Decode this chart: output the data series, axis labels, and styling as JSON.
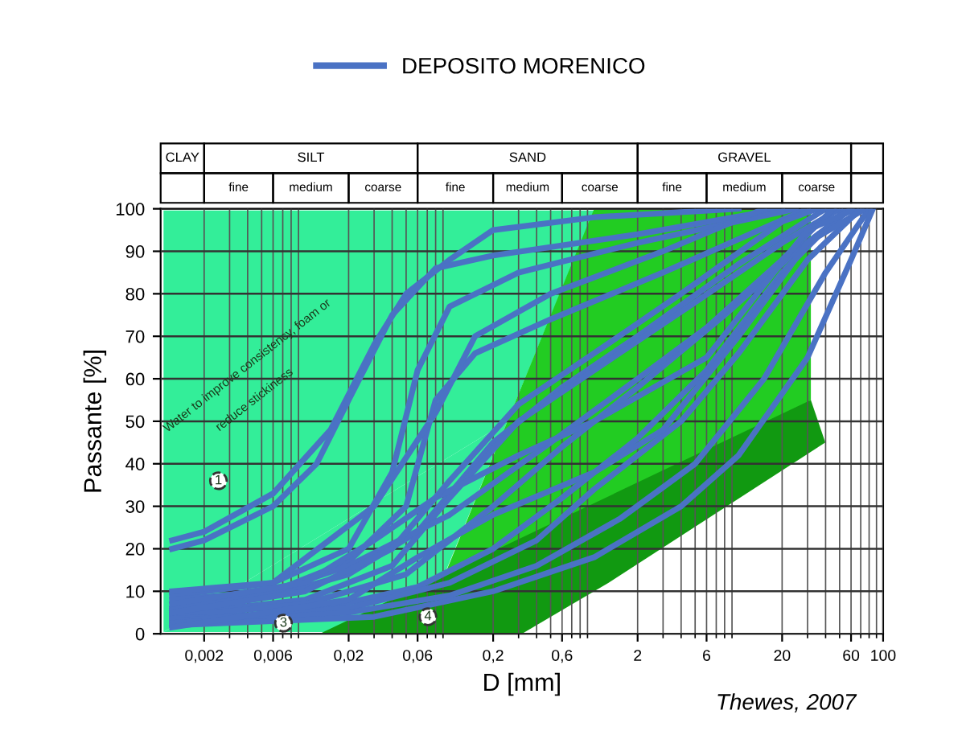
{
  "chart_data": {
    "type": "line",
    "xlabel": "D [mm]",
    "ylabel": "Passante [%]",
    "log": "x",
    "grid": true,
    "legend": "top",
    "line_style": "solid",
    "marker": "none",
    "xlim": [
      0.001,
      100
    ],
    "xticks": [
      {
        "value": 0.002,
        "label": "0,002"
      },
      {
        "value": 0.006,
        "label": "0,006"
      },
      {
        "value": 0.02,
        "label": "0,02"
      },
      {
        "value": 0.06,
        "label": "0,06"
      },
      {
        "value": 0.2,
        "label": "0,2"
      },
      {
        "value": 0.6,
        "label": "0,6"
      },
      2,
      6,
      20,
      60,
      100
    ],
    "ylim": [
      0,
      100
    ],
    "yticks": [
      0,
      10,
      20,
      30,
      40,
      50,
      60,
      70,
      80,
      90,
      100
    ],
    "annotations": [
      "CLAY",
      "SILT",
      "SAND",
      "GRAVEL",
      "fine",
      "medium",
      "coarse",
      "fine",
      "medium",
      "coarse",
      "fine",
      "medium",
      "coarse",
      "Water to improve consistency, foam or",
      "reduce stickiness",
      "1",
      "3",
      "4",
      "Thewes, 2007"
    ],
    "series": [
      {
        "name": "DEPOSITO MORENICO",
        "color": "#4a72c4",
        "x": [
          0.0012,
          0.002,
          0.006,
          0.015,
          0.03,
          0.05,
          0.1,
          0.2,
          1,
          10
        ],
        "values": [
          22,
          24,
          33,
          48,
          68,
          80,
          88,
          95,
          98,
          100
        ]
      },
      {
        "color": "#4a72c4",
        "x": [
          0.0012,
          0.002,
          0.006,
          0.012,
          0.02,
          0.04,
          0.08,
          0.2,
          2,
          20
        ],
        "values": [
          20,
          22,
          30,
          40,
          55,
          75,
          86,
          89,
          94,
          100
        ]
      },
      {
        "color": "#4a72c4",
        "x": [
          0.0012,
          0.006,
          0.02,
          0.04,
          0.06,
          0.1,
          0.3,
          2,
          25
        ],
        "values": [
          9,
          12,
          20,
          38,
          62,
          77,
          85,
          92,
          100
        ]
      },
      {
        "color": "#4a72c4",
        "x": [
          0.0012,
          0.006,
          0.02,
          0.05,
          0.08,
          0.15,
          0.5,
          3,
          30
        ],
        "values": [
          8,
          10,
          17,
          30,
          55,
          66,
          74,
          85,
          100
        ]
      },
      {
        "color": "#4a72c4",
        "x": [
          0.0012,
          0.006,
          0.02,
          0.06,
          0.2,
          0.6,
          2,
          10,
          40
        ],
        "values": [
          5.5,
          9,
          14,
          24,
          45,
          58,
          70,
          87,
          100
        ]
      },
      {
        "color": "#4a72c4",
        "x": [
          0.0012,
          0.01,
          0.04,
          0.1,
          0.3,
          1,
          5,
          20,
          50
        ],
        "values": [
          4.5,
          8,
          16,
          32,
          50,
          62,
          78,
          92,
          100
        ]
      },
      {
        "color": "#4a72c4",
        "x": [
          0.0012,
          0.01,
          0.05,
          0.2,
          0.6,
          2,
          8,
          25,
          60
        ],
        "values": [
          4,
          7,
          14,
          30,
          44,
          58,
          75,
          90,
          100
        ]
      },
      {
        "color": "#4a72c4",
        "x": [
          0.0012,
          0.01,
          0.06,
          0.2,
          0.6,
          2,
          6,
          20,
          55
        ],
        "values": [
          3.5,
          5,
          11,
          20,
          32,
          46,
          62,
          85,
          100
        ]
      },
      {
        "color": "#4a72c4",
        "x": [
          0.0012,
          0.02,
          0.1,
          0.4,
          1,
          4,
          10,
          30,
          70
        ],
        "values": [
          3,
          6,
          12,
          22,
          34,
          50,
          66,
          88,
          100
        ]
      },
      {
        "color": "#4a72c4",
        "x": [
          0.0012,
          0.02,
          0.1,
          0.4,
          1.5,
          5,
          15,
          40,
          80
        ],
        "values": [
          2.5,
          5,
          9,
          16,
          27,
          40,
          60,
          85,
          100
        ]
      },
      {
        "color": "#4a72c4",
        "x": [
          0.0012,
          0.03,
          0.2,
          1,
          4,
          10,
          30,
          60,
          85
        ],
        "values": [
          2,
          4,
          10,
          18,
          30,
          42,
          65,
          88,
          100
        ]
      },
      {
        "color": "#4a72c4",
        "x": [
          0.0012,
          0.006,
          0.02,
          0.1,
          0.5,
          2,
          6,
          20,
          45
        ],
        "values": [
          6,
          10,
          16,
          28,
          45,
          60,
          72,
          88,
          100
        ]
      },
      {
        "color": "#4a72c4",
        "x": [
          0.0012,
          0.01,
          0.03,
          0.08,
          0.3,
          1,
          6,
          30,
          65
        ],
        "values": [
          7,
          12,
          22,
          32,
          42,
          50,
          65,
          95,
          100
        ]
      },
      {
        "color": "#4a72c4",
        "x": [
          0.0012,
          0.01,
          0.04,
          0.1,
          0.3,
          1,
          4,
          20,
          35
        ],
        "values": [
          5,
          10,
          20,
          36,
          54,
          66,
          80,
          97,
          100
        ]
      },
      {
        "color": "#4a72c4",
        "x": [
          0.0012,
          0.006,
          0.03,
          0.08,
          0.15,
          0.5,
          3,
          15
        ],
        "values": [
          10,
          12,
          30,
          52,
          70,
          80,
          90,
          100
        ]
      },
      {
        "color": "#4a72c4",
        "x": [
          0.0012,
          0.02,
          0.06,
          0.2,
          1,
          3,
          10,
          30,
          75
        ],
        "values": [
          1.5,
          8,
          18,
          28,
          38,
          48,
          70,
          92,
          100
        ]
      }
    ]
  }
}
